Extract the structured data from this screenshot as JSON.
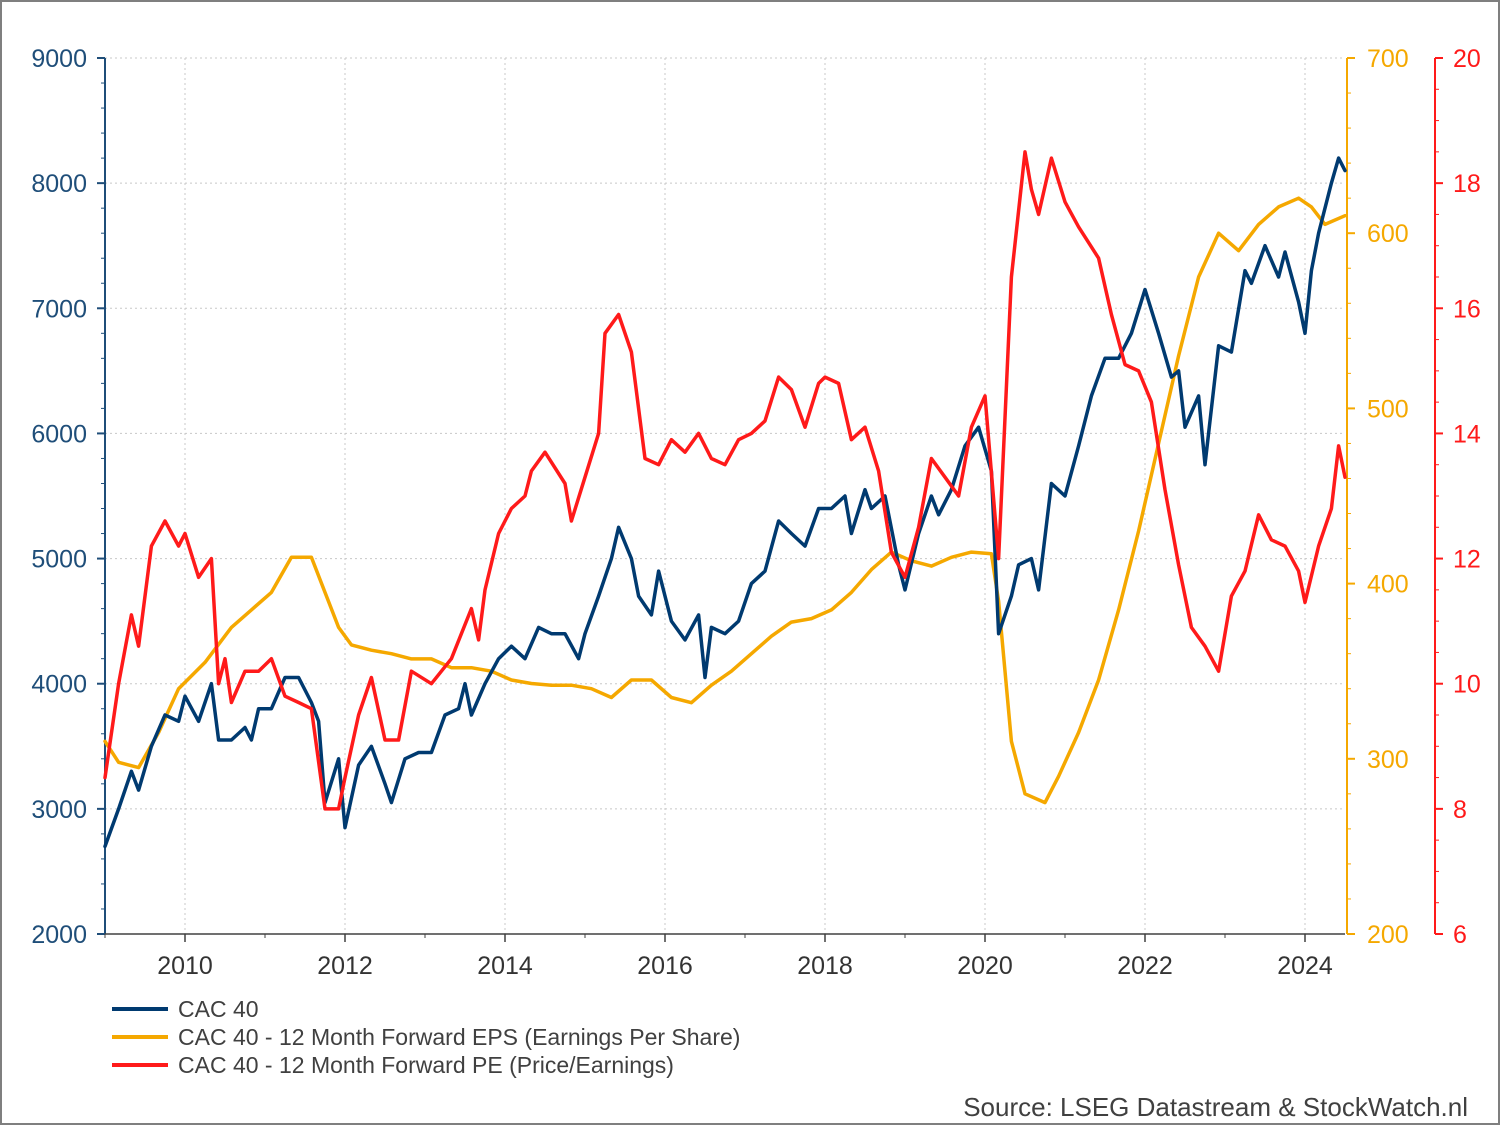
{
  "chart_data": {
    "type": "line",
    "x_range": [
      2009.0,
      2024.5
    ],
    "x_ticks": [
      "2010",
      "2012",
      "2014",
      "2016",
      "2018",
      "2020",
      "2022",
      "2024"
    ],
    "axes": {
      "left": {
        "min": 2000,
        "max": 9000,
        "ticks": [
          "2000",
          "3000",
          "4000",
          "5000",
          "6000",
          "7000",
          "8000",
          "9000"
        ],
        "color": "#1f4e79"
      },
      "right1": {
        "min": 200,
        "max": 700,
        "ticks": [
          "200",
          "300",
          "400",
          "500",
          "600",
          "700"
        ],
        "color": "#f5a800"
      },
      "right2": {
        "min": 6,
        "max": 20,
        "ticks": [
          "6",
          "8",
          "10",
          "12",
          "14",
          "16",
          "18",
          "20"
        ],
        "color": "#ff1a1a"
      }
    },
    "grid": true,
    "legend_position": "bottom-left",
    "series": [
      {
        "name": "CAC 40",
        "axis": "left",
        "color": "#003a70",
        "points": [
          [
            2009.0,
            2700
          ],
          [
            2009.17,
            3000
          ],
          [
            2009.33,
            3300
          ],
          [
            2009.42,
            3150
          ],
          [
            2009.58,
            3500
          ],
          [
            2009.75,
            3750
          ],
          [
            2009.92,
            3700
          ],
          [
            2010.0,
            3900
          ],
          [
            2010.17,
            3700
          ],
          [
            2010.33,
            4000
          ],
          [
            2010.42,
            3550
          ],
          [
            2010.58,
            3550
          ],
          [
            2010.75,
            3650
          ],
          [
            2010.83,
            3550
          ],
          [
            2010.92,
            3800
          ],
          [
            2011.08,
            3800
          ],
          [
            2011.25,
            4050
          ],
          [
            2011.42,
            4050
          ],
          [
            2011.58,
            3850
          ],
          [
            2011.67,
            3700
          ],
          [
            2011.75,
            3050
          ],
          [
            2011.92,
            3400
          ],
          [
            2012.0,
            2850
          ],
          [
            2012.17,
            3350
          ],
          [
            2012.33,
            3500
          ],
          [
            2012.5,
            3200
          ],
          [
            2012.58,
            3050
          ],
          [
            2012.75,
            3400
          ],
          [
            2012.92,
            3450
          ],
          [
            2013.08,
            3450
          ],
          [
            2013.25,
            3750
          ],
          [
            2013.42,
            3800
          ],
          [
            2013.5,
            4000
          ],
          [
            2013.58,
            3750
          ],
          [
            2013.75,
            4000
          ],
          [
            2013.92,
            4200
          ],
          [
            2014.08,
            4300
          ],
          [
            2014.25,
            4200
          ],
          [
            2014.42,
            4450
          ],
          [
            2014.58,
            4400
          ],
          [
            2014.75,
            4400
          ],
          [
            2014.92,
            4200
          ],
          [
            2015.0,
            4400
          ],
          [
            2015.17,
            4700
          ],
          [
            2015.33,
            5000
          ],
          [
            2015.42,
            5250
          ],
          [
            2015.58,
            5000
          ],
          [
            2015.67,
            4700
          ],
          [
            2015.83,
            4550
          ],
          [
            2015.92,
            4900
          ],
          [
            2016.08,
            4500
          ],
          [
            2016.25,
            4350
          ],
          [
            2016.42,
            4550
          ],
          [
            2016.5,
            4050
          ],
          [
            2016.58,
            4450
          ],
          [
            2016.75,
            4400
          ],
          [
            2016.92,
            4500
          ],
          [
            2017.08,
            4800
          ],
          [
            2017.25,
            4900
          ],
          [
            2017.42,
            5300
          ],
          [
            2017.58,
            5200
          ],
          [
            2017.75,
            5100
          ],
          [
            2017.92,
            5400
          ],
          [
            2018.08,
            5400
          ],
          [
            2018.25,
            5500
          ],
          [
            2018.33,
            5200
          ],
          [
            2018.5,
            5550
          ],
          [
            2018.58,
            5400
          ],
          [
            2018.75,
            5500
          ],
          [
            2018.92,
            4950
          ],
          [
            2019.0,
            4750
          ],
          [
            2019.17,
            5200
          ],
          [
            2019.33,
            5500
          ],
          [
            2019.42,
            5350
          ],
          [
            2019.58,
            5550
          ],
          [
            2019.75,
            5900
          ],
          [
            2019.92,
            6050
          ],
          [
            2020.08,
            5700
          ],
          [
            2020.17,
            4400
          ],
          [
            2020.33,
            4700
          ],
          [
            2020.42,
            4950
          ],
          [
            2020.58,
            5000
          ],
          [
            2020.67,
            4750
          ],
          [
            2020.83,
            5600
          ],
          [
            2021.0,
            5500
          ],
          [
            2021.17,
            5900
          ],
          [
            2021.33,
            6300
          ],
          [
            2021.5,
            6600
          ],
          [
            2021.67,
            6600
          ],
          [
            2021.83,
            6800
          ],
          [
            2022.0,
            7150
          ],
          [
            2022.17,
            6800
          ],
          [
            2022.33,
            6450
          ],
          [
            2022.42,
            6500
          ],
          [
            2022.5,
            6050
          ],
          [
            2022.67,
            6300
          ],
          [
            2022.75,
            5750
          ],
          [
            2022.92,
            6700
          ],
          [
            2023.08,
            6650
          ],
          [
            2023.25,
            7300
          ],
          [
            2023.33,
            7200
          ],
          [
            2023.5,
            7500
          ],
          [
            2023.67,
            7250
          ],
          [
            2023.75,
            7450
          ],
          [
            2023.92,
            7050
          ],
          [
            2024.0,
            6800
          ],
          [
            2024.08,
            7300
          ],
          [
            2024.17,
            7600
          ],
          [
            2024.33,
            8000
          ],
          [
            2024.42,
            8200
          ],
          [
            2024.5,
            8100
          ]
        ]
      },
      {
        "name": "CAC 40 - 12 Month Forward EPS (Earnings Per Share)",
        "axis": "right1",
        "color": "#f5a800",
        "points": [
          [
            2009.0,
            310
          ],
          [
            2009.17,
            298
          ],
          [
            2009.42,
            295
          ],
          [
            2009.67,
            315
          ],
          [
            2009.92,
            340
          ],
          [
            2010.25,
            355
          ],
          [
            2010.58,
            375
          ],
          [
            2010.83,
            385
          ],
          [
            2011.08,
            395
          ],
          [
            2011.33,
            415
          ],
          [
            2011.58,
            415
          ],
          [
            2011.75,
            395
          ],
          [
            2011.92,
            375
          ],
          [
            2012.08,
            365
          ],
          [
            2012.33,
            362
          ],
          [
            2012.58,
            360
          ],
          [
            2012.83,
            357
          ],
          [
            2013.08,
            357
          ],
          [
            2013.33,
            352
          ],
          [
            2013.58,
            352
          ],
          [
            2013.83,
            350
          ],
          [
            2014.08,
            345
          ],
          [
            2014.33,
            343
          ],
          [
            2014.58,
            342
          ],
          [
            2014.83,
            342
          ],
          [
            2015.08,
            340
          ],
          [
            2015.33,
            335
          ],
          [
            2015.58,
            345
          ],
          [
            2015.83,
            345
          ],
          [
            2016.08,
            335
          ],
          [
            2016.33,
            332
          ],
          [
            2016.58,
            342
          ],
          [
            2016.83,
            350
          ],
          [
            2017.08,
            360
          ],
          [
            2017.33,
            370
          ],
          [
            2017.58,
            378
          ],
          [
            2017.83,
            380
          ],
          [
            2018.08,
            385
          ],
          [
            2018.33,
            395
          ],
          [
            2018.58,
            408
          ],
          [
            2018.83,
            418
          ],
          [
            2019.08,
            413
          ],
          [
            2019.33,
            410
          ],
          [
            2019.58,
            415
          ],
          [
            2019.83,
            418
          ],
          [
            2020.08,
            417
          ],
          [
            2020.17,
            390
          ],
          [
            2020.33,
            310
          ],
          [
            2020.5,
            280
          ],
          [
            2020.75,
            275
          ],
          [
            2020.92,
            290
          ],
          [
            2021.17,
            315
          ],
          [
            2021.42,
            345
          ],
          [
            2021.67,
            385
          ],
          [
            2021.92,
            430
          ],
          [
            2022.17,
            480
          ],
          [
            2022.42,
            530
          ],
          [
            2022.67,
            575
          ],
          [
            2022.92,
            600
          ],
          [
            2023.17,
            590
          ],
          [
            2023.42,
            605
          ],
          [
            2023.67,
            615
          ],
          [
            2023.92,
            620
          ],
          [
            2024.08,
            615
          ],
          [
            2024.25,
            605
          ],
          [
            2024.5,
            610
          ]
        ]
      },
      {
        "name": "CAC 40 - 12 Month Forward PE (Price/Earnings)",
        "axis": "right2",
        "color": "#ff1a1a",
        "points": [
          [
            2009.0,
            8.5
          ],
          [
            2009.17,
            10.0
          ],
          [
            2009.33,
            11.1
          ],
          [
            2009.42,
            10.6
          ],
          [
            2009.58,
            12.2
          ],
          [
            2009.75,
            12.6
          ],
          [
            2009.92,
            12.2
          ],
          [
            2010.0,
            12.4
          ],
          [
            2010.17,
            11.7
          ],
          [
            2010.33,
            12.0
          ],
          [
            2010.42,
            10.0
          ],
          [
            2010.5,
            10.4
          ],
          [
            2010.58,
            9.7
          ],
          [
            2010.75,
            10.2
          ],
          [
            2010.92,
            10.2
          ],
          [
            2011.08,
            10.4
          ],
          [
            2011.25,
            9.8
          ],
          [
            2011.42,
            9.7
          ],
          [
            2011.58,
            9.6
          ],
          [
            2011.75,
            8.0
          ],
          [
            2011.92,
            8.0
          ],
          [
            2012.0,
            8.5
          ],
          [
            2012.17,
            9.5
          ],
          [
            2012.33,
            10.1
          ],
          [
            2012.5,
            9.1
          ],
          [
            2012.67,
            9.1
          ],
          [
            2012.83,
            10.2
          ],
          [
            2013.08,
            10.0
          ],
          [
            2013.33,
            10.4
          ],
          [
            2013.58,
            11.2
          ],
          [
            2013.67,
            10.7
          ],
          [
            2013.75,
            11.5
          ],
          [
            2013.92,
            12.4
          ],
          [
            2014.08,
            12.8
          ],
          [
            2014.25,
            13.0
          ],
          [
            2014.33,
            13.4
          ],
          [
            2014.5,
            13.7
          ],
          [
            2014.75,
            13.2
          ],
          [
            2014.83,
            12.6
          ],
          [
            2015.0,
            13.3
          ],
          [
            2015.17,
            14.0
          ],
          [
            2015.25,
            15.6
          ],
          [
            2015.42,
            15.9
          ],
          [
            2015.58,
            15.3
          ],
          [
            2015.75,
            13.6
          ],
          [
            2015.92,
            13.5
          ],
          [
            2016.08,
            13.9
          ],
          [
            2016.25,
            13.7
          ],
          [
            2016.42,
            14.0
          ],
          [
            2016.58,
            13.6
          ],
          [
            2016.75,
            13.5
          ],
          [
            2016.92,
            13.9
          ],
          [
            2017.08,
            14.0
          ],
          [
            2017.25,
            14.2
          ],
          [
            2017.42,
            14.9
          ],
          [
            2017.58,
            14.7
          ],
          [
            2017.75,
            14.1
          ],
          [
            2017.92,
            14.8
          ],
          [
            2018.0,
            14.9
          ],
          [
            2018.17,
            14.8
          ],
          [
            2018.33,
            13.9
          ],
          [
            2018.5,
            14.1
          ],
          [
            2018.67,
            13.4
          ],
          [
            2018.83,
            12.1
          ],
          [
            2019.0,
            11.7
          ],
          [
            2019.17,
            12.5
          ],
          [
            2019.33,
            13.6
          ],
          [
            2019.5,
            13.3
          ],
          [
            2019.67,
            13.0
          ],
          [
            2019.83,
            14.1
          ],
          [
            2020.0,
            14.6
          ],
          [
            2020.17,
            12.0
          ],
          [
            2020.33,
            16.5
          ],
          [
            2020.5,
            18.5
          ],
          [
            2020.58,
            17.9
          ],
          [
            2020.67,
            17.5
          ],
          [
            2020.83,
            18.4
          ],
          [
            2021.0,
            17.7
          ],
          [
            2021.17,
            17.3
          ],
          [
            2021.42,
            16.8
          ],
          [
            2021.58,
            15.9
          ],
          [
            2021.75,
            15.1
          ],
          [
            2021.92,
            15.0
          ],
          [
            2022.08,
            14.5
          ],
          [
            2022.25,
            13.1
          ],
          [
            2022.42,
            11.9
          ],
          [
            2022.58,
            10.9
          ],
          [
            2022.75,
            10.6
          ],
          [
            2022.92,
            10.2
          ],
          [
            2023.08,
            11.4
          ],
          [
            2023.25,
            11.8
          ],
          [
            2023.42,
            12.7
          ],
          [
            2023.58,
            12.3
          ],
          [
            2023.75,
            12.2
          ],
          [
            2023.92,
            11.8
          ],
          [
            2024.0,
            11.3
          ],
          [
            2024.17,
            12.2
          ],
          [
            2024.33,
            12.8
          ],
          [
            2024.42,
            13.8
          ],
          [
            2024.5,
            13.3
          ]
        ]
      }
    ]
  },
  "legend": [
    {
      "label": "CAC 40",
      "color": "#003a70"
    },
    {
      "label": "CAC 40 - 12 Month Forward EPS (Earnings Per Share)",
      "color": "#f5a800"
    },
    {
      "label": "CAC 40 - 12 Month Forward PE (Price/Earnings)",
      "color": "#ff1a1a"
    }
  ],
  "source_text": "Source: LSEG Datastream & StockWatch.nl"
}
